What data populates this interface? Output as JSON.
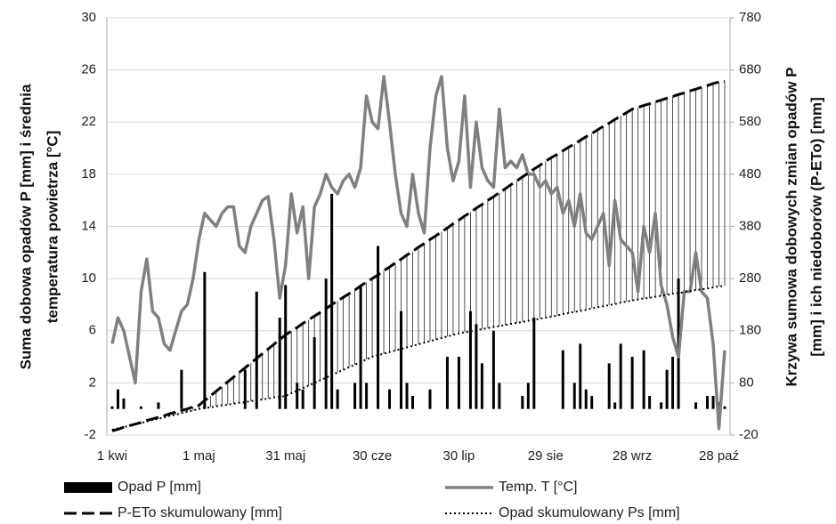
{
  "chart_data": {
    "type": "combo",
    "y_label": [
      "Suma dobowa opadów P [mm] i średnia",
      "temperatura powietrza [°C]"
    ],
    "y2_label": [
      "Krzywa sumowa dobowych zmian opadów P",
      "[mm] i ich niedoborów (P-ETo) [mm]"
    ],
    "categories": [
      "1 kwi",
      null,
      null,
      null,
      null,
      null,
      null,
      null,
      null,
      null,
      null,
      null,
      null,
      null,
      null,
      "1 maj",
      null,
      null,
      null,
      null,
      null,
      null,
      null,
      null,
      null,
      null,
      null,
      null,
      null,
      null,
      "31 maj",
      null,
      null,
      null,
      null,
      null,
      null,
      null,
      null,
      null,
      null,
      null,
      null,
      null,
      null,
      "30 cze",
      null,
      null,
      null,
      null,
      null,
      null,
      null,
      null,
      null,
      null,
      null,
      null,
      null,
      null,
      "30 lip",
      null,
      null,
      null,
      null,
      null,
      null,
      null,
      null,
      null,
      null,
      null,
      null,
      null,
      null,
      "29 sie",
      null,
      null,
      null,
      null,
      null,
      null,
      null,
      null,
      null,
      null,
      null,
      null,
      null,
      null,
      "28 wrz",
      null,
      null,
      null,
      null,
      null,
      null,
      null,
      null,
      null,
      null,
      null,
      null,
      null,
      null,
      "28 paź",
      null
    ],
    "ylim": [
      -2,
      30
    ],
    "yticks": [
      -2,
      2,
      6,
      10,
      14,
      18,
      22,
      26,
      30
    ],
    "y2lim": [
      -20,
      780
    ],
    "y2ticks": [
      -20,
      80,
      180,
      280,
      380,
      480,
      580,
      680,
      780
    ],
    "grid": true,
    "legend": "bottom",
    "series": [
      {
        "name": "Opad P [mm]",
        "type": "bar",
        "color": "#000000",
        "values": [
          0.2,
          1.5,
          0.8,
          0,
          0,
          0.2,
          0,
          0,
          0.5,
          0,
          0,
          0,
          3,
          0,
          0,
          0,
          10.5,
          0,
          0,
          0,
          0,
          0,
          0,
          3,
          0,
          9,
          0,
          0,
          0,
          7,
          9.5,
          0,
          2,
          1.5,
          0,
          5.5,
          0,
          10,
          16.5,
          1.5,
          0,
          0,
          2,
          9.5,
          2,
          0,
          12.5,
          0,
          1.5,
          0,
          7.5,
          2,
          1,
          0,
          0,
          1.5,
          0,
          0,
          4,
          0,
          4,
          0,
          7.5,
          6.5,
          3.5,
          0,
          6,
          2,
          0,
          0,
          0,
          1,
          2,
          7,
          0,
          0,
          0,
          0,
          4.5,
          0,
          2,
          5,
          1.5,
          1,
          0,
          0,
          3.5,
          0.5,
          5,
          0,
          4,
          0,
          4.5,
          1,
          0,
          0.5,
          3,
          4,
          10,
          0,
          0,
          0.5,
          0,
          1,
          1,
          0.5,
          0.2
        ]
      },
      {
        "name": "Temp. T [°C]",
        "type": "line",
        "line_style": "solid",
        "color": "#808080",
        "values": [
          5,
          7,
          6,
          4,
          2,
          9,
          11.5,
          7.5,
          7,
          5,
          4.5,
          6,
          7.5,
          8,
          10,
          13,
          15,
          14.5,
          14,
          15,
          15.5,
          15.5,
          12.5,
          12,
          14,
          15,
          16,
          16.3,
          13,
          8.5,
          11,
          16.5,
          13.5,
          15.5,
          10,
          15.5,
          16.5,
          18,
          17,
          16.5,
          17.5,
          18,
          17,
          18.5,
          24,
          22,
          21.5,
          25.5,
          22,
          18,
          15,
          14,
          18,
          15,
          13.5,
          20,
          24,
          25.5,
          20,
          17.5,
          19,
          24,
          17,
          22,
          18.5,
          17.5,
          17,
          23,
          18.5,
          19,
          18.5,
          19.5,
          18,
          18,
          17,
          17.5,
          16.5,
          17,
          15,
          16,
          14,
          16.5,
          13.5,
          13,
          14,
          15,
          11,
          16,
          13,
          12.5,
          12,
          9,
          14,
          12,
          15,
          9.5,
          8,
          5.5,
          4,
          9,
          9,
          12,
          9,
          8.5,
          5,
          -1.5,
          4.5
        ]
      },
      {
        "name": "P-ETo skumulowany [mm]",
        "type": "line",
        "axis": "y2",
        "line_style": "dashed",
        "color": "#000000",
        "values": [
          -12,
          -9,
          -5,
          -2,
          1,
          4,
          8,
          11,
          14,
          17,
          21,
          24,
          27,
          30,
          34,
          37,
          46,
          55,
          64,
          73,
          82,
          91,
          100,
          109,
          118,
          127,
          136,
          145,
          154,
          163,
          172,
          179,
          186,
          194,
          201,
          208,
          215,
          222,
          230,
          237,
          244,
          251,
          258,
          266,
          273,
          280,
          287,
          295,
          302,
          310,
          317,
          325,
          332,
          340,
          347,
          355,
          362,
          370,
          377,
          385,
          392,
          400,
          407,
          415,
          422,
          430,
          437,
          445,
          452,
          460,
          467,
          475,
          482,
          490,
          497,
          505,
          512,
          518,
          525,
          532,
          538,
          545,
          552,
          558,
          565,
          572,
          578,
          585,
          592,
          598,
          605,
          608,
          612,
          615,
          619,
          622,
          626,
          629,
          633,
          636,
          640,
          643,
          647,
          650,
          654,
          657,
          658
        ]
      },
      {
        "name": "Opad skumulowany Ps [mm]",
        "type": "line",
        "axis": "y2",
        "line_style": "dotted",
        "color": "#000000",
        "values": [
          -10,
          -7,
          -5,
          -2,
          1,
          3,
          6,
          9,
          11,
          14,
          17,
          19,
          22,
          25,
          27,
          30,
          32,
          33,
          35,
          37,
          38,
          40,
          42,
          43,
          45,
          47,
          48,
          50,
          52,
          53,
          55,
          60,
          65,
          70,
          75,
          80,
          85,
          90,
          95,
          100,
          105,
          110,
          115,
          120,
          125,
          130,
          133,
          136,
          139,
          142,
          145,
          148,
          151,
          154,
          157,
          160,
          163,
          166,
          169,
          172,
          175,
          177,
          179,
          181,
          183,
          185,
          187,
          189,
          191,
          193,
          195,
          197,
          199,
          201,
          203,
          205,
          207,
          209,
          212,
          214,
          216,
          218,
          220,
          223,
          225,
          227,
          229,
          231,
          234,
          236,
          238,
          240,
          242,
          243,
          245,
          247,
          249,
          251,
          252,
          254,
          256,
          258,
          259,
          261,
          263,
          265,
          266
        ]
      }
    ]
  }
}
